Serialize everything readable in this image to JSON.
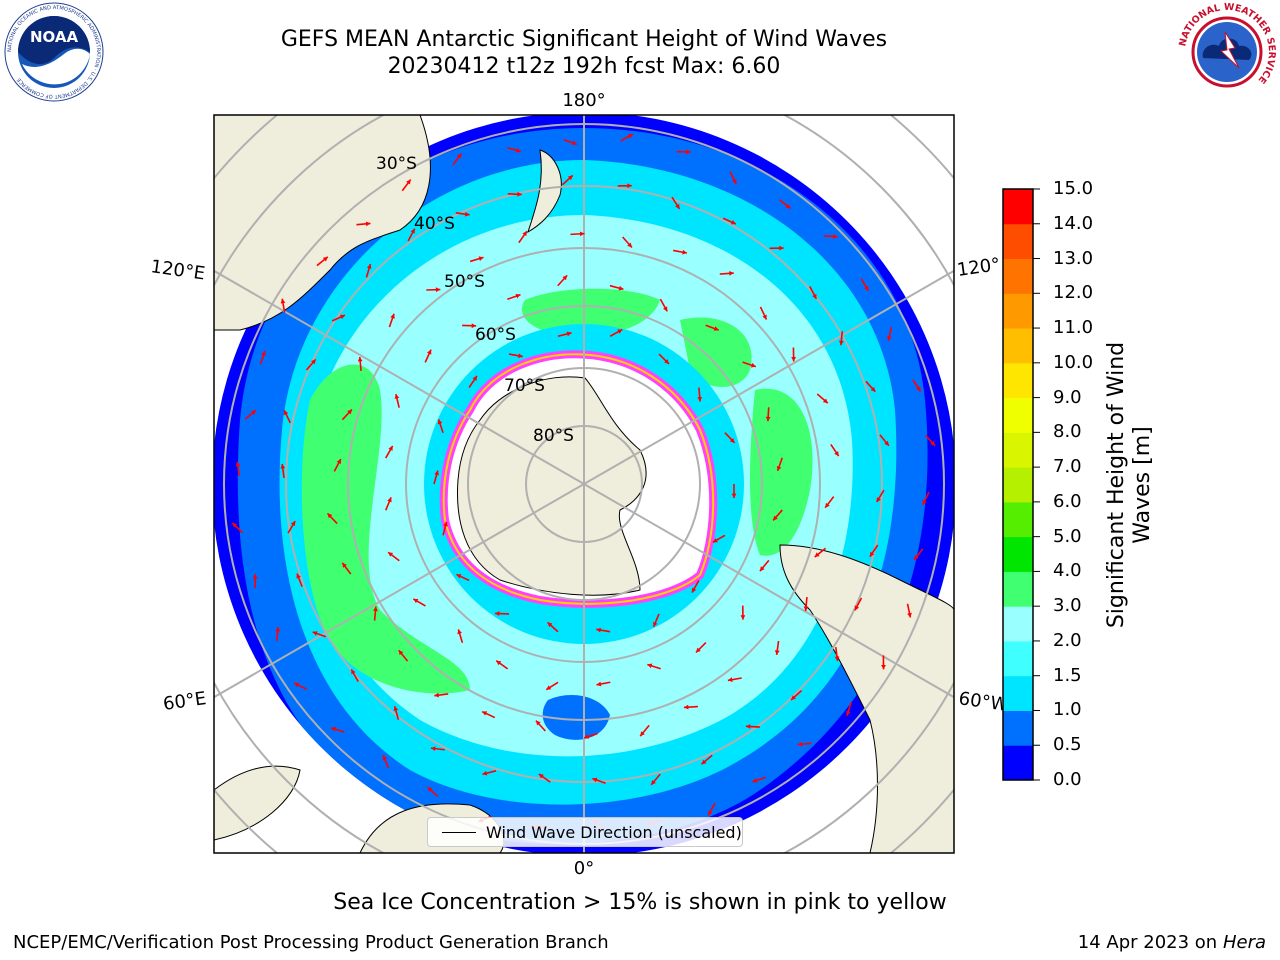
{
  "header": {
    "title_line1": "GEFS MEAN Antarctic Significant Height of Wind Waves",
    "title_line2": "20230412 t12z 192h fcst   Max: 6.60"
  },
  "logos": {
    "noaa_text": "NOAA",
    "noaa_ring": "NATIONAL OCEANIC AND ATMOSPHERIC ADMINISTRATION · U.S. DEPARTMENT OF COMMERCE",
    "nws_ring": "NATIONAL WEATHER SERVICE"
  },
  "map": {
    "lon_labels": [
      "180°",
      "120°E",
      "120°",
      "60°E",
      "60°W",
      "0°"
    ],
    "lat_labels": [
      "30°S",
      "40°S",
      "50°S",
      "60°S",
      "70°S",
      "80°S"
    ],
    "legend_label": "Wind Wave Direction (unscaled)",
    "colors": {
      "land": "#efeddb",
      "ice": "#ffffff",
      "arrow": "#ff0000",
      "grid": "#b0b0b0"
    },
    "wave_bands": [
      {
        "height": "1.0",
        "color": "#0070ff"
      },
      {
        "height": "1.5",
        "color": "#00d9ff"
      },
      {
        "height": "2.0",
        "color": "#99ffff"
      },
      {
        "height": "3.0",
        "color": "#40ff70"
      }
    ]
  },
  "colorbar": {
    "label": "Significant Height of Wind Waves [m]",
    "ticks": [
      "15.0",
      "14.0",
      "13.0",
      "12.0",
      "11.0",
      "10.0",
      "9.0",
      "8.0",
      "7.0",
      "6.0",
      "5.0",
      "4.0",
      "3.0",
      "2.0",
      "1.5",
      "1.0",
      "0.5",
      "0.0"
    ],
    "colors_bottom_to_top": [
      "#0000ff",
      "#0070ff",
      "#00e5ff",
      "#40ffff",
      "#99ffff",
      "#40ff70",
      "#00e600",
      "#55ee00",
      "#b5f000",
      "#d9f500",
      "#f0ff00",
      "#ffe600",
      "#ffbf00",
      "#ff9900",
      "#ff7300",
      "#ff4d00",
      "#ff0000"
    ]
  },
  "notes": {
    "sea_ice": "Sea Ice Concentration > 15% is shown in pink to yellow",
    "branch": "NCEP/EMC/Verification Post Processing Product Generation Branch",
    "date": "14 Apr 2023 on",
    "machine": "Hera"
  }
}
